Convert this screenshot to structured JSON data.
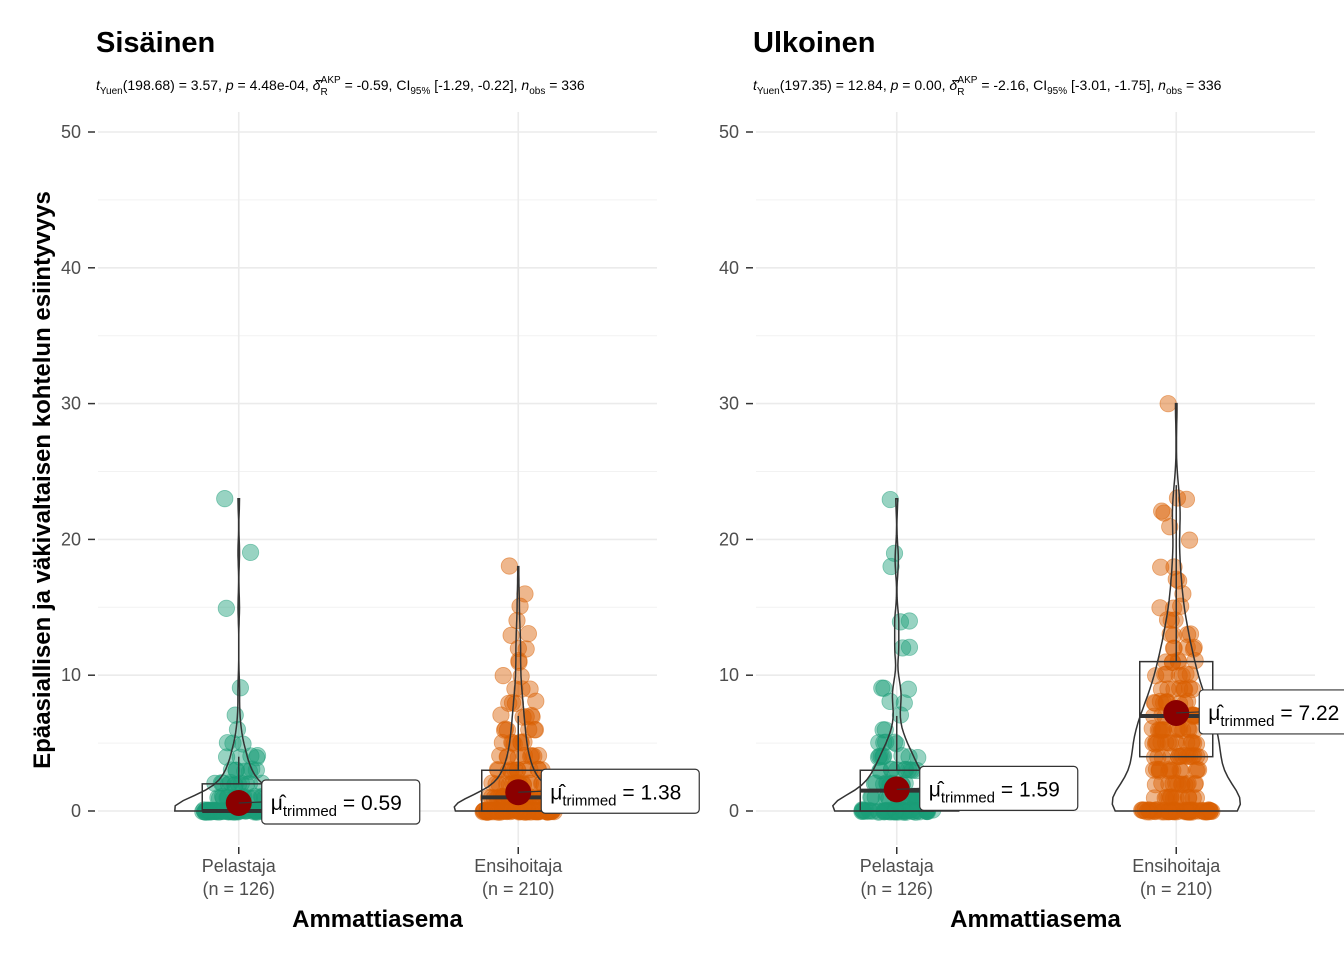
{
  "figure": {
    "ylabel": "Epäasiallisen ja väkivaltaisen kohtelun esiintyvyys",
    "colors": {
      "group1": "#1b9e77",
      "group2": "#d95f02",
      "mean_marker": "#8b0000"
    }
  },
  "chart_data": [
    {
      "type": "violin-box-scatter",
      "title": "Sisäinen",
      "subtitle": {
        "stat_name": "Yuen",
        "df": "198.68",
        "statistic": "3.57",
        "p": "4.48e-04",
        "effect_name": "AKP",
        "effect_sub": "R",
        "effect": "-0.59",
        "ci_level": "95%",
        "ci": "[-1.29, -0.22]",
        "n_obs": "336"
      },
      "xlabel": "Ammattiasema",
      "ylim": [
        -5,
        52
      ],
      "yticks": [
        0,
        10,
        20,
        30,
        40,
        50
      ],
      "grid": true,
      "categories": [
        "Pelastaja",
        "Ensihoitaja"
      ],
      "category_n": [
        "(n = 126)",
        "(n = 210)"
      ],
      "trimmed_means": [
        0.59,
        1.38
      ],
      "trimmed_mean_labels": [
        "0.59",
        "1.38"
      ],
      "mean_label_sub": "trimmed",
      "boxes": [
        {
          "q1": 0,
          "median": 0,
          "q3": 2,
          "whisker_high": 4,
          "max": 23
        },
        {
          "q1": 0,
          "median": 1,
          "q3": 3,
          "whisker_high": 7,
          "max": 18
        }
      ],
      "points": [
        [
          23,
          19,
          15,
          9,
          7,
          6,
          5,
          5,
          5,
          4,
          4,
          4,
          4,
          4,
          3,
          3,
          3,
          3,
          3,
          3,
          3,
          2,
          2,
          2,
          2,
          2,
          2,
          2,
          2,
          2,
          2,
          2,
          2,
          1,
          1,
          1,
          1,
          1,
          1,
          1,
          1,
          1,
          1,
          1,
          1,
          1,
          1,
          1,
          1,
          1,
          1,
          0,
          0,
          0,
          0,
          0,
          0,
          0,
          0,
          0,
          0,
          0,
          0,
          0,
          0,
          0,
          0,
          0,
          0,
          0,
          0,
          0,
          0,
          0,
          0,
          0,
          0,
          0,
          0,
          0,
          0,
          0,
          0,
          0,
          0,
          0,
          0,
          0,
          0,
          0,
          0,
          0,
          0,
          0,
          0,
          0,
          0,
          0,
          0,
          0,
          0,
          0,
          0,
          0,
          0,
          0,
          0,
          0,
          0,
          0,
          0,
          0,
          0,
          0,
          0,
          0,
          0,
          0,
          0,
          0,
          0,
          0,
          0,
          0,
          0,
          0,
          0
        ],
        [
          18,
          16,
          15,
          14,
          13,
          13,
          12,
          12,
          11,
          11,
          10,
          10,
          9,
          9,
          9,
          8,
          8,
          8,
          8,
          7,
          7,
          7,
          7,
          7,
          6,
          6,
          6,
          6,
          6,
          6,
          5,
          5,
          5,
          5,
          5,
          5,
          5,
          4,
          4,
          4,
          4,
          4,
          4,
          4,
          4,
          4,
          3,
          3,
          3,
          3,
          3,
          3,
          3,
          3,
          3,
          3,
          3,
          3,
          3,
          2,
          2,
          2,
          2,
          2,
          2,
          2,
          2,
          2,
          2,
          2,
          2,
          2,
          2,
          2,
          2,
          2,
          1,
          1,
          1,
          1,
          1,
          1,
          1,
          1,
          1,
          1,
          1,
          1,
          1,
          1,
          1,
          1,
          1,
          1,
          1,
          1,
          1,
          1,
          1,
          1,
          1,
          1,
          1,
          1,
          1,
          1,
          1,
          0,
          0,
          0,
          0,
          0,
          0,
          0,
          0,
          0,
          0,
          0,
          0,
          0,
          0,
          0,
          0,
          0,
          0,
          0,
          0,
          0,
          0,
          0,
          0,
          0,
          0,
          0,
          0,
          0,
          0,
          0,
          0,
          0,
          0,
          0,
          0,
          0,
          0,
          0,
          0,
          0,
          0,
          0,
          0,
          0,
          0,
          0,
          0,
          0,
          0,
          0,
          0,
          0,
          0,
          0,
          0,
          0,
          0,
          0,
          0,
          0,
          0,
          0,
          0,
          0,
          0,
          0,
          0,
          0,
          0,
          0,
          0,
          0,
          0,
          0,
          0,
          0,
          0,
          0,
          0,
          0,
          0,
          0,
          0,
          0,
          0,
          0,
          0,
          0,
          0,
          0,
          0,
          0,
          0,
          0,
          0,
          0,
          0,
          0,
          0,
          0,
          0
        ]
      ]
    },
    {
      "type": "violin-box-scatter",
      "title": "Ulkoinen",
      "subtitle": {
        "stat_name": "Yuen",
        "df": "197.35",
        "statistic": "12.84",
        "p": "0.00",
        "effect_name": "AKP",
        "effect_sub": "R",
        "effect": "-2.16",
        "ci_level": "95%",
        "ci": "[-3.01, -1.75]",
        "n_obs": "336"
      },
      "xlabel": "Ammattiasema",
      "ylim": [
        -5,
        52
      ],
      "yticks": [
        0,
        10,
        20,
        30,
        40,
        50
      ],
      "grid": true,
      "categories": [
        "Pelastaja",
        "Ensihoitaja"
      ],
      "category_n": [
        "(n = 126)",
        "(n = 210)"
      ],
      "trimmed_means": [
        1.59,
        7.22
      ],
      "trimmed_mean_labels": [
        "1.59",
        "7.22"
      ],
      "mean_label_sub": "trimmed",
      "boxes": [
        {
          "q1": 0,
          "median": 1.5,
          "q3": 3,
          "whisker_high": 7,
          "max": 23
        },
        {
          "q1": 4,
          "median": 7,
          "q3": 11,
          "whisker_high": 24,
          "max": 30
        }
      ],
      "points": [
        [
          23,
          19,
          18,
          14,
          14,
          12,
          12,
          9,
          9,
          9,
          8,
          8,
          7,
          6,
          6,
          5,
          5,
          5,
          5,
          5,
          4,
          4,
          4,
          4,
          4,
          4,
          4,
          4,
          3,
          3,
          3,
          3,
          3,
          3,
          3,
          3,
          3,
          3,
          3,
          2,
          2,
          2,
          2,
          2,
          2,
          2,
          2,
          2,
          2,
          2,
          2,
          2,
          2,
          1,
          1,
          1,
          1,
          1,
          1,
          1,
          1,
          1,
          1,
          1,
          1,
          1,
          1,
          1,
          1,
          1,
          1,
          1,
          1,
          0,
          0,
          0,
          0,
          0,
          0,
          0,
          0,
          0,
          0,
          0,
          0,
          0,
          0,
          0,
          0,
          0,
          0,
          0,
          0,
          0,
          0,
          0,
          0,
          0,
          0,
          0,
          0,
          0,
          0,
          0,
          0,
          0,
          0,
          0,
          0,
          0,
          0,
          0,
          0,
          0,
          0,
          0,
          0,
          0,
          0,
          0,
          0,
          0,
          0,
          0,
          0,
          0,
          0
        ],
        [
          30,
          23,
          23,
          22,
          22,
          21,
          20,
          18,
          18,
          17,
          17,
          16,
          15,
          15,
          15,
          14,
          14,
          14,
          13,
          13,
          13,
          13,
          12,
          12,
          12,
          12,
          12,
          11,
          11,
          11,
          11,
          11,
          11,
          10,
          10,
          10,
          10,
          10,
          10,
          10,
          9,
          9,
          9,
          9,
          9,
          9,
          9,
          9,
          8,
          8,
          8,
          8,
          8,
          8,
          8,
          8,
          8,
          8,
          7,
          7,
          7,
          7,
          7,
          7,
          7,
          7,
          7,
          7,
          7,
          7,
          6,
          6,
          6,
          6,
          6,
          6,
          6,
          6,
          6,
          6,
          6,
          6,
          6,
          6,
          5,
          5,
          5,
          5,
          5,
          5,
          5,
          5,
          5,
          5,
          5,
          5,
          5,
          5,
          5,
          4,
          4,
          4,
          4,
          4,
          4,
          4,
          4,
          4,
          4,
          4,
          4,
          4,
          4,
          4,
          3,
          3,
          3,
          3,
          3,
          3,
          3,
          3,
          3,
          3,
          3,
          3,
          3,
          3,
          2,
          2,
          2,
          2,
          2,
          2,
          2,
          2,
          2,
          2,
          2,
          2,
          2,
          1,
          1,
          1,
          1,
          1,
          1,
          1,
          1,
          1,
          1,
          1,
          1,
          1,
          0,
          0,
          0,
          0,
          0,
          0,
          0,
          0,
          0,
          0,
          0,
          0,
          0,
          0,
          0,
          0,
          0,
          0,
          0,
          0,
          0,
          0,
          0,
          0,
          0,
          0,
          0,
          0,
          0,
          0,
          0,
          0,
          0,
          0,
          0,
          0,
          0,
          0,
          0,
          0,
          0,
          0,
          0,
          0,
          0,
          0,
          0,
          0,
          0,
          0,
          0,
          0,
          0,
          0,
          0,
          0,
          0,
          0,
          0,
          0
        ]
      ]
    }
  ]
}
